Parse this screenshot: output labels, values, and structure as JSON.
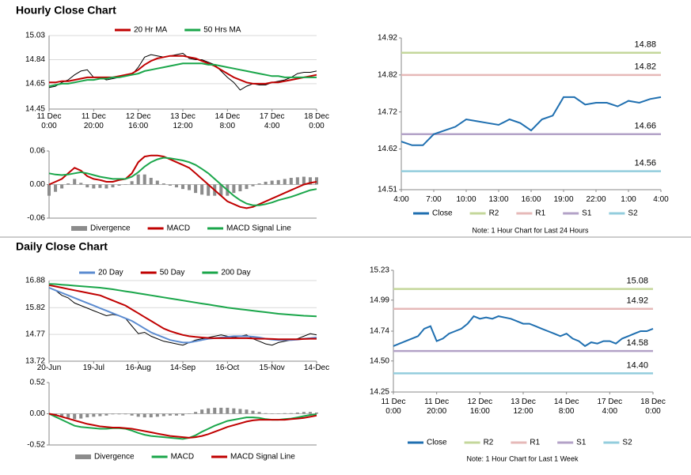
{
  "sections": [
    "Hourly Close Chart",
    "Daily Close Chart"
  ],
  "chart_data": [
    {
      "type": "line",
      "grid": true,
      "legend": "top",
      "categories": [
        "11 Dec\n0:00",
        null,
        null,
        null,
        null,
        null,
        null,
        "11 Dec\n20:00",
        null,
        null,
        null,
        null,
        null,
        null,
        "12 Dec\n16:00",
        null,
        null,
        null,
        null,
        null,
        null,
        "13 Dec\n12:00",
        null,
        null,
        null,
        null,
        null,
        null,
        "14 Dec\n8:00",
        null,
        null,
        null,
        null,
        null,
        null,
        "17 Dec\n4:00",
        null,
        null,
        null,
        null,
        null,
        null,
        "18 Dec\n0:00"
      ],
      "ylim": [
        14.45,
        15.03
      ],
      "yticks": [
        14.45,
        14.65,
        14.84,
        15.03
      ],
      "color": "#000000",
      "values": [
        14.62,
        14.63,
        14.66,
        14.68,
        14.72,
        14.75,
        14.76,
        14.7,
        14.7,
        14.68,
        14.69,
        14.7,
        14.71,
        14.72,
        14.78,
        14.86,
        14.88,
        14.87,
        14.86,
        14.87,
        14.88,
        14.89,
        14.85,
        14.84,
        14.84,
        14.82,
        14.8,
        14.75,
        14.7,
        14.66,
        14.6,
        14.63,
        14.65,
        14.64,
        14.64,
        14.66,
        14.67,
        14.68,
        14.7,
        14.73,
        14.74,
        14.74,
        14.75
      ],
      "series": [
        {
          "name": "20 Hr MA",
          "color": "#c00000",
          "values": [
            14.66,
            14.66,
            14.67,
            14.67,
            14.68,
            14.69,
            14.7,
            14.7,
            14.7,
            14.7,
            14.7,
            14.71,
            14.72,
            14.73,
            14.76,
            14.8,
            14.83,
            14.85,
            14.86,
            14.87,
            14.87,
            14.87,
            14.86,
            14.85,
            14.83,
            14.81,
            14.79,
            14.76,
            14.73,
            14.7,
            14.68,
            14.66,
            14.65,
            14.65,
            14.65,
            14.66,
            14.66,
            14.67,
            14.68,
            14.69,
            14.7,
            14.71,
            14.72
          ]
        },
        {
          "name": "50 Hrs MA",
          "color": "#1aa64a",
          "values": [
            14.63,
            14.64,
            14.65,
            14.65,
            14.66,
            14.67,
            14.68,
            14.68,
            14.69,
            14.69,
            14.7,
            14.7,
            14.71,
            14.72,
            14.73,
            14.75,
            14.76,
            14.77,
            14.78,
            14.79,
            14.8,
            14.81,
            14.81,
            14.81,
            14.81,
            14.8,
            14.8,
            14.79,
            14.78,
            14.77,
            14.76,
            14.75,
            14.74,
            14.73,
            14.72,
            14.71,
            14.71,
            14.7,
            14.7,
            14.7,
            14.7,
            14.7,
            14.7
          ]
        }
      ]
    },
    {
      "type": "macd",
      "grid": false,
      "legend": "bottom",
      "ylim": [
        -0.06,
        0.06
      ],
      "yticks": [
        -0.06,
        {
          "value": 0,
          "label": "0.00"
        },
        0.06
      ],
      "series": [
        {
          "name": "Divergence",
          "color": "#8c8c8c",
          "style": "bar",
          "values": [
            -0.02,
            -0.013,
            -0.007,
            0.002,
            0.01,
            0.003,
            -0.005,
            -0.007,
            -0.006,
            -0.007,
            -0.005,
            -0.002,
            0.0,
            0.006,
            0.018,
            0.018,
            0.012,
            0.007,
            0.002,
            -0.002,
            -0.005,
            -0.008,
            -0.01,
            -0.015,
            -0.018,
            -0.02,
            -0.02,
            -0.02,
            -0.02,
            -0.015,
            -0.012,
            -0.008,
            -0.003,
            0.002,
            0.005,
            0.007,
            0.008,
            0.01,
            0.012,
            0.013,
            0.014,
            0.013,
            0.013
          ]
        },
        {
          "name": "MACD",
          "color": "#c00000",
          "style": "line",
          "values": [
            0.0,
            0.005,
            0.01,
            0.02,
            0.03,
            0.025,
            0.015,
            0.01,
            0.008,
            0.005,
            0.005,
            0.008,
            0.01,
            0.02,
            0.04,
            0.05,
            0.052,
            0.052,
            0.05,
            0.045,
            0.04,
            0.035,
            0.03,
            0.02,
            0.01,
            0.0,
            -0.01,
            -0.02,
            -0.03,
            -0.035,
            -0.04,
            -0.042,
            -0.04,
            -0.035,
            -0.03,
            -0.025,
            -0.02,
            -0.015,
            -0.01,
            -0.005,
            0.0,
            0.003,
            0.005
          ]
        },
        {
          "name": "MACD Signal Line",
          "color": "#1aa64a",
          "style": "line",
          "values": [
            0.02,
            0.018,
            0.017,
            0.018,
            0.02,
            0.022,
            0.02,
            0.017,
            0.014,
            0.012,
            0.01,
            0.01,
            0.01,
            0.014,
            0.022,
            0.032,
            0.04,
            0.045,
            0.048,
            0.047,
            0.045,
            0.043,
            0.04,
            0.035,
            0.028,
            0.02,
            0.01,
            0.0,
            -0.01,
            -0.02,
            -0.028,
            -0.034,
            -0.037,
            -0.037,
            -0.035,
            -0.032,
            -0.028,
            -0.025,
            -0.022,
            -0.018,
            -0.014,
            -0.01,
            -0.008
          ]
        }
      ]
    },
    {
      "type": "line",
      "grid": false,
      "legend": "bottom",
      "categories": [
        "4:00",
        null,
        null,
        "7:00",
        null,
        null,
        "10:00",
        null,
        null,
        "13:00",
        null,
        null,
        "16:00",
        null,
        null,
        "19:00",
        null,
        null,
        "22:00",
        null,
        null,
        "1:00",
        null,
        null,
        "4:00"
      ],
      "ylim": [
        14.51,
        14.92
      ],
      "yticks": [
        14.51,
        14.62,
        14.72,
        14.82,
        14.92
      ],
      "series": [
        {
          "name": "Close",
          "color": "#1f6fb0",
          "values": [
            14.64,
            14.63,
            14.63,
            14.66,
            14.67,
            14.68,
            14.7,
            14.695,
            14.69,
            14.685,
            14.7,
            14.69,
            14.67,
            14.7,
            14.71,
            14.76,
            14.76,
            14.74,
            14.745,
            14.745,
            14.735,
            14.75,
            14.745,
            14.755,
            14.76
          ]
        }
      ],
      "levels": [
        {
          "name": "R2",
          "color": "#c4d79b",
          "value": 14.88
        },
        {
          "name": "R1",
          "color": "#e6b9b8",
          "value": 14.82
        },
        {
          "name": "S1",
          "color": "#b3a2c7",
          "value": 14.66
        },
        {
          "name": "S2",
          "color": "#93cddd",
          "value": 14.56
        }
      ],
      "note": "Note: 1 Hour Chart for Last 24 Hours"
    },
    {
      "type": "line",
      "grid": true,
      "legend": "top",
      "categories": [
        "20-Jun",
        null,
        null,
        null,
        null,
        null,
        null,
        "19-Jul",
        null,
        null,
        null,
        null,
        null,
        null,
        "16-Aug",
        null,
        null,
        null,
        null,
        null,
        null,
        "14-Sep",
        null,
        null,
        null,
        null,
        null,
        null,
        "16-Oct",
        null,
        null,
        null,
        null,
        null,
        null,
        "15-Nov",
        null,
        null,
        null,
        null,
        null,
        null,
        "14-Dec"
      ],
      "ylim": [
        13.72,
        16.88
      ],
      "yticks": [
        13.72,
        14.77,
        15.82,
        16.88
      ],
      "color": "#000000",
      "values": [
        16.6,
        16.5,
        16.3,
        16.2,
        16.0,
        15.9,
        15.8,
        15.7,
        15.6,
        15.5,
        15.55,
        15.5,
        15.4,
        15.1,
        14.8,
        14.85,
        14.7,
        14.6,
        14.5,
        14.45,
        14.4,
        14.35,
        14.45,
        14.55,
        14.6,
        14.65,
        14.7,
        14.75,
        14.7,
        14.65,
        14.7,
        14.75,
        14.6,
        14.5,
        14.4,
        14.35,
        14.45,
        14.5,
        14.55,
        14.6,
        14.7,
        14.8,
        14.75
      ],
      "series": [
        {
          "name": "20 Day",
          "color": "#5b8bd0",
          "values": [
            16.6,
            16.5,
            16.4,
            16.3,
            16.2,
            16.1,
            16.0,
            15.9,
            15.8,
            15.7,
            15.6,
            15.5,
            15.4,
            15.3,
            15.15,
            15.0,
            14.85,
            14.75,
            14.65,
            14.55,
            14.5,
            14.45,
            14.45,
            14.5,
            14.55,
            14.6,
            14.62,
            14.65,
            14.67,
            14.7,
            14.7,
            14.7,
            14.68,
            14.65,
            14.6,
            14.57,
            14.55,
            14.55,
            14.55,
            14.57,
            14.6,
            14.62,
            14.65
          ]
        },
        {
          "name": "50 Day",
          "color": "#c00000",
          "values": [
            16.7,
            16.65,
            16.6,
            16.55,
            16.5,
            16.45,
            16.4,
            16.35,
            16.3,
            16.2,
            16.1,
            16.0,
            15.9,
            15.75,
            15.6,
            15.45,
            15.3,
            15.15,
            15.0,
            14.9,
            14.82,
            14.75,
            14.7,
            14.67,
            14.65,
            14.63,
            14.62,
            14.62,
            14.62,
            14.62,
            14.62,
            14.62,
            14.61,
            14.6,
            14.6,
            14.59,
            14.58,
            14.58,
            14.58,
            14.58,
            14.59,
            14.6,
            14.6
          ]
        },
        {
          "name": "200 Day",
          "color": "#1aa64a",
          "values": [
            16.75,
            16.74,
            16.72,
            16.7,
            16.68,
            16.66,
            16.64,
            16.62,
            16.6,
            16.57,
            16.54,
            16.5,
            16.46,
            16.42,
            16.38,
            16.34,
            16.3,
            16.26,
            16.22,
            16.18,
            16.14,
            16.1,
            16.06,
            16.02,
            15.98,
            15.94,
            15.9,
            15.86,
            15.82,
            15.79,
            15.76,
            15.73,
            15.7,
            15.67,
            15.64,
            15.61,
            15.58,
            15.56,
            15.54,
            15.52,
            15.5,
            15.49,
            15.48
          ]
        }
      ]
    },
    {
      "type": "macd",
      "grid": false,
      "legend": "bottom",
      "ylim": [
        -0.52,
        0.52
      ],
      "yticks": [
        -0.52,
        {
          "value": 0,
          "label": "0.00"
        },
        0.52
      ],
      "series": [
        {
          "name": "Divergence",
          "color": "#8c8c8c",
          "style": "bar",
          "values": [
            0.0,
            -0.03,
            -0.05,
            -0.07,
            -0.09,
            -0.08,
            -0.06,
            -0.05,
            -0.04,
            -0.03,
            -0.01,
            -0.01,
            -0.01,
            -0.03,
            -0.05,
            -0.06,
            -0.06,
            -0.05,
            -0.04,
            -0.03,
            -0.03,
            -0.03,
            0.0,
            0.03,
            0.07,
            0.09,
            0.1,
            0.1,
            0.1,
            0.09,
            0.08,
            0.07,
            0.05,
            0.03,
            0.01,
            0.0,
            0.0,
            0.01,
            0.01,
            0.02,
            0.03,
            0.03,
            0.02
          ]
        },
        {
          "name": "MACD",
          "color": "#1aa64a",
          "style": "line",
          "values": [
            0.0,
            -0.05,
            -0.1,
            -0.15,
            -0.2,
            -0.22,
            -0.23,
            -0.24,
            -0.25,
            -0.25,
            -0.24,
            -0.24,
            -0.25,
            -0.28,
            -0.32,
            -0.35,
            -0.37,
            -0.38,
            -0.39,
            -0.4,
            -0.41,
            -0.42,
            -0.4,
            -0.36,
            -0.3,
            -0.25,
            -0.2,
            -0.16,
            -0.12,
            -0.1,
            -0.08,
            -0.06,
            -0.06,
            -0.07,
            -0.09,
            -0.1,
            -0.1,
            -0.09,
            -0.08,
            -0.06,
            -0.04,
            -0.02,
            -0.01
          ]
        },
        {
          "name": "MACD Signal Line",
          "color": "#c00000",
          "style": "line",
          "values": [
            0.0,
            -0.02,
            -0.05,
            -0.08,
            -0.11,
            -0.14,
            -0.17,
            -0.19,
            -0.21,
            -0.22,
            -0.23,
            -0.23,
            -0.24,
            -0.25,
            -0.27,
            -0.29,
            -0.31,
            -0.33,
            -0.35,
            -0.37,
            -0.38,
            -0.39,
            -0.4,
            -0.39,
            -0.37,
            -0.34,
            -0.3,
            -0.26,
            -0.22,
            -0.19,
            -0.16,
            -0.13,
            -0.11,
            -0.1,
            -0.1,
            -0.1,
            -0.1,
            -0.1,
            -0.09,
            -0.08,
            -0.07,
            -0.05,
            -0.03
          ]
        }
      ]
    },
    {
      "type": "line",
      "grid": false,
      "legend": "bottom",
      "categories": [
        "11 Dec\n0:00",
        null,
        null,
        null,
        null,
        null,
        null,
        "11 Dec\n20:00",
        null,
        null,
        null,
        null,
        null,
        null,
        "12 Dec\n16:00",
        null,
        null,
        null,
        null,
        null,
        null,
        "13 Dec\n12:00",
        null,
        null,
        null,
        null,
        null,
        null,
        "14 Dec\n8:00",
        null,
        null,
        null,
        null,
        null,
        null,
        "17 Dec\n4:00",
        null,
        null,
        null,
        null,
        null,
        null,
        "18 Dec\n0:00"
      ],
      "ylim": [
        14.25,
        15.23
      ],
      "yticks": [
        14.25,
        {
          "value": 14.5,
          "label": "14.50"
        },
        14.74,
        14.99,
        15.23
      ],
      "series": [
        {
          "name": "Close",
          "color": "#1f6fb0",
          "values": [
            14.62,
            14.64,
            14.66,
            14.68,
            14.7,
            14.76,
            14.78,
            14.66,
            14.68,
            14.72,
            14.74,
            14.76,
            14.8,
            14.86,
            14.84,
            14.85,
            14.84,
            14.86,
            14.85,
            14.84,
            14.82,
            14.8,
            14.8,
            14.78,
            14.76,
            14.74,
            14.72,
            14.7,
            14.72,
            14.68,
            14.66,
            14.62,
            14.65,
            14.64,
            14.66,
            14.66,
            14.64,
            14.68,
            14.7,
            14.72,
            14.74,
            14.74,
            14.76
          ]
        }
      ],
      "levels": [
        {
          "name": "R2",
          "color": "#c4d79b",
          "value": 15.08
        },
        {
          "name": "R1",
          "color": "#e6b9b8",
          "value": 14.92
        },
        {
          "name": "S1",
          "color": "#b3a2c7",
          "value": 14.58
        },
        {
          "name": "S2",
          "color": "#93cddd",
          "value": 14.4,
          "value_label": "14.40"
        }
      ],
      "note": "Note: 1 Hour Chart for Last 1 Week"
    }
  ]
}
